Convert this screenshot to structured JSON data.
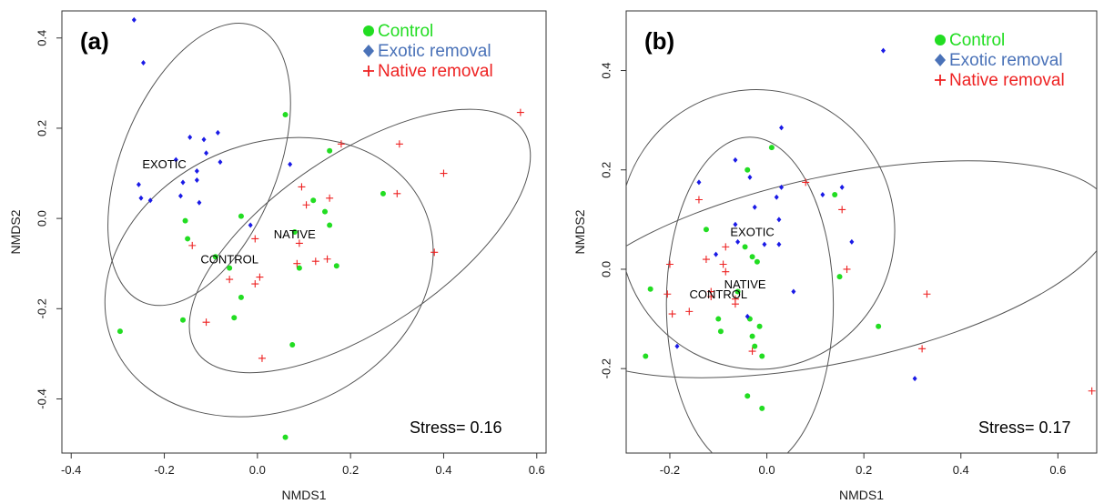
{
  "colors": {
    "control": "#22dd22",
    "exotic": "#1a1ae6",
    "native": "#ee2222",
    "exotic_legend": "#4a72b8",
    "ellipse": "#555555"
  },
  "chart_data": [
    {
      "type": "scatter",
      "panel_label": "(a)",
      "xlabel": "NMDS1",
      "ylabel": "NMDS2",
      "xlim": [
        -0.42,
        0.62
      ],
      "ylim": [
        -0.52,
        0.46
      ],
      "xticks": [
        -0.4,
        -0.2,
        0.0,
        0.2,
        0.4,
        0.6
      ],
      "xtick_labels": [
        "-0.4",
        "-0.2",
        "0.0",
        "0.2",
        "0.4",
        "0.6"
      ],
      "yticks": [
        -0.4,
        -0.2,
        0.0,
        0.2,
        0.4
      ],
      "ytick_labels": [
        "-0.4",
        "-0.2",
        "0.0",
        "0.2",
        "0.4"
      ],
      "legend": [
        "Control",
        "Exotic removal",
        "Native removal"
      ],
      "legend_position": "top-right",
      "stress_label": "Stress= 0.16",
      "centroids": [
        {
          "label": "EXOTIC",
          "x": -0.2,
          "y": 0.12
        },
        {
          "label": "NATIVE",
          "x": 0.08,
          "y": -0.035
        },
        {
          "label": "CONTROL",
          "x": -0.06,
          "y": -0.09
        }
      ],
      "ellipses": [
        {
          "group": "exotic",
          "cx": -0.125,
          "cy": 0.12,
          "rx": 0.325,
          "ry": 0.17,
          "angle": -68
        },
        {
          "group": "native",
          "cx": 0.22,
          "cy": -0.05,
          "rx": 0.43,
          "ry": 0.19,
          "angle": -34
        },
        {
          "group": "control",
          "cx": 0.025,
          "cy": -0.13,
          "rx": 0.37,
          "ry": 0.29,
          "angle": -24
        }
      ],
      "series": [
        {
          "name": "Control",
          "points": [
            [
              0.06,
              0.23
            ],
            [
              0.155,
              0.15
            ],
            [
              0.27,
              0.055
            ],
            [
              0.12,
              0.04
            ],
            [
              0.145,
              0.015
            ],
            [
              0.155,
              -0.015
            ],
            [
              -0.155,
              -0.005
            ],
            [
              -0.035,
              0.005
            ],
            [
              0.08,
              -0.03
            ],
            [
              -0.15,
              -0.045
            ],
            [
              -0.09,
              -0.085
            ],
            [
              -0.06,
              -0.11
            ],
            [
              0.09,
              -0.11
            ],
            [
              0.17,
              -0.105
            ],
            [
              -0.035,
              -0.175
            ],
            [
              -0.16,
              -0.225
            ],
            [
              -0.05,
              -0.22
            ],
            [
              -0.295,
              -0.25
            ],
            [
              0.075,
              -0.28
            ],
            [
              0.06,
              -0.485
            ]
          ]
        },
        {
          "name": "Exotic removal",
          "points": [
            [
              -0.265,
              0.44
            ],
            [
              -0.245,
              0.345
            ],
            [
              -0.085,
              0.19
            ],
            [
              -0.145,
              0.18
            ],
            [
              -0.115,
              0.175
            ],
            [
              -0.11,
              0.145
            ],
            [
              -0.08,
              0.125
            ],
            [
              0.07,
              0.12
            ],
            [
              -0.175,
              0.13
            ],
            [
              -0.13,
              0.105
            ],
            [
              -0.16,
              0.08
            ],
            [
              -0.13,
              0.085
            ],
            [
              -0.255,
              0.075
            ],
            [
              -0.25,
              0.045
            ],
            [
              -0.23,
              0.04
            ],
            [
              -0.165,
              0.05
            ],
            [
              -0.125,
              0.035
            ],
            [
              -0.015,
              -0.015
            ]
          ]
        },
        {
          "name": "Native removal",
          "points": [
            [
              0.565,
              0.235
            ],
            [
              0.18,
              0.165
            ],
            [
              0.305,
              0.165
            ],
            [
              0.4,
              0.1
            ],
            [
              0.095,
              0.07
            ],
            [
              0.3,
              0.055
            ],
            [
              0.155,
              0.045
            ],
            [
              0.105,
              0.03
            ],
            [
              -0.005,
              -0.045
            ],
            [
              0.09,
              -0.055
            ],
            [
              0.38,
              -0.075
            ],
            [
              0.15,
              -0.09
            ],
            [
              0.125,
              -0.095
            ],
            [
              0.085,
              -0.1
            ],
            [
              -0.14,
              -0.06
            ],
            [
              0.005,
              -0.13
            ],
            [
              -0.005,
              -0.145
            ],
            [
              -0.06,
              -0.135
            ],
            [
              -0.11,
              -0.23
            ],
            [
              0.01,
              -0.31
            ]
          ]
        }
      ]
    },
    {
      "type": "scatter",
      "panel_label": "(b)",
      "xlabel": "NMDS1",
      "ylabel": "NMDS2",
      "xlim": [
        -0.29,
        0.68
      ],
      "ylim": [
        -0.37,
        0.52
      ],
      "xticks": [
        -0.2,
        0.0,
        0.2,
        0.4,
        0.6
      ],
      "xtick_labels": [
        "-0.2",
        "0.0",
        "0.2",
        "0.4",
        "0.6"
      ],
      "yticks": [
        -0.2,
        0.0,
        0.2,
        0.4
      ],
      "ytick_labels": [
        "-0.2",
        "0.0",
        "0.2",
        "0.4"
      ],
      "legend": [
        "Control",
        "Exotic removal",
        "Native removal"
      ],
      "legend_position": "top-right",
      "stress_label": "Stress= 0.17",
      "centroids": [
        {
          "label": "EXOTIC",
          "x": -0.03,
          "y": 0.075
        },
        {
          "label": "NATIVE",
          "x": -0.045,
          "y": -0.03
        },
        {
          "label": "CONTROL",
          "x": -0.1,
          "y": -0.05
        }
      ],
      "ellipses": [
        {
          "group": "exotic",
          "cx": -0.02,
          "cy": 0.08,
          "rx": 0.28,
          "ry": 0.285,
          "angle": -10
        },
        {
          "group": "native",
          "cx": 0.14,
          "cy": 0.0,
          "rx": 0.575,
          "ry": 0.19,
          "angle": -12
        },
        {
          "group": "control",
          "cx": -0.035,
          "cy": -0.07,
          "rx": 0.17,
          "ry": 0.34,
          "angle": 0
        }
      ],
      "series": [
        {
          "name": "Control",
          "points": [
            [
              0.01,
              0.245
            ],
            [
              -0.04,
              0.2
            ],
            [
              0.14,
              0.15
            ],
            [
              -0.125,
              0.08
            ],
            [
              -0.045,
              0.045
            ],
            [
              -0.03,
              0.025
            ],
            [
              -0.02,
              0.015
            ],
            [
              0.15,
              -0.015
            ],
            [
              -0.24,
              -0.04
            ],
            [
              -0.06,
              -0.045
            ],
            [
              -0.1,
              -0.1
            ],
            [
              -0.035,
              -0.1
            ],
            [
              -0.015,
              -0.115
            ],
            [
              -0.095,
              -0.125
            ],
            [
              -0.03,
              -0.135
            ],
            [
              -0.025,
              -0.155
            ],
            [
              -0.01,
              -0.175
            ],
            [
              -0.25,
              -0.175
            ],
            [
              0.23,
              -0.115
            ],
            [
              -0.04,
              -0.255
            ],
            [
              -0.01,
              -0.28
            ]
          ]
        },
        {
          "name": "Exotic removal",
          "points": [
            [
              0.24,
              0.44
            ],
            [
              0.03,
              0.285
            ],
            [
              -0.065,
              0.22
            ],
            [
              -0.035,
              0.185
            ],
            [
              -0.14,
              0.175
            ],
            [
              0.03,
              0.165
            ],
            [
              0.155,
              0.165
            ],
            [
              0.115,
              0.15
            ],
            [
              0.02,
              0.145
            ],
            [
              -0.025,
              0.125
            ],
            [
              0.025,
              0.1
            ],
            [
              -0.065,
              0.09
            ],
            [
              0.175,
              0.055
            ],
            [
              -0.06,
              0.055
            ],
            [
              -0.005,
              0.05
            ],
            [
              0.025,
              0.05
            ],
            [
              -0.105,
              0.03
            ],
            [
              0.055,
              -0.045
            ],
            [
              -0.04,
              -0.095
            ],
            [
              -0.185,
              -0.155
            ],
            [
              0.305,
              -0.22
            ]
          ]
        },
        {
          "name": "Native removal",
          "points": [
            [
              0.08,
              0.175
            ],
            [
              -0.14,
              0.14
            ],
            [
              0.155,
              0.12
            ],
            [
              -0.085,
              0.045
            ],
            [
              -0.125,
              0.02
            ],
            [
              -0.09,
              0.01
            ],
            [
              -0.2,
              0.01
            ],
            [
              0.165,
              0.0
            ],
            [
              -0.085,
              -0.005
            ],
            [
              -0.205,
              -0.05
            ],
            [
              -0.115,
              -0.045
            ],
            [
              0.33,
              -0.05
            ],
            [
              -0.115,
              -0.055
            ],
            [
              -0.065,
              -0.06
            ],
            [
              -0.065,
              -0.07
            ],
            [
              -0.195,
              -0.09
            ],
            [
              -0.16,
              -0.085
            ],
            [
              -0.03,
              -0.165
            ],
            [
              0.32,
              -0.16
            ],
            [
              0.67,
              -0.245
            ]
          ]
        }
      ]
    }
  ]
}
